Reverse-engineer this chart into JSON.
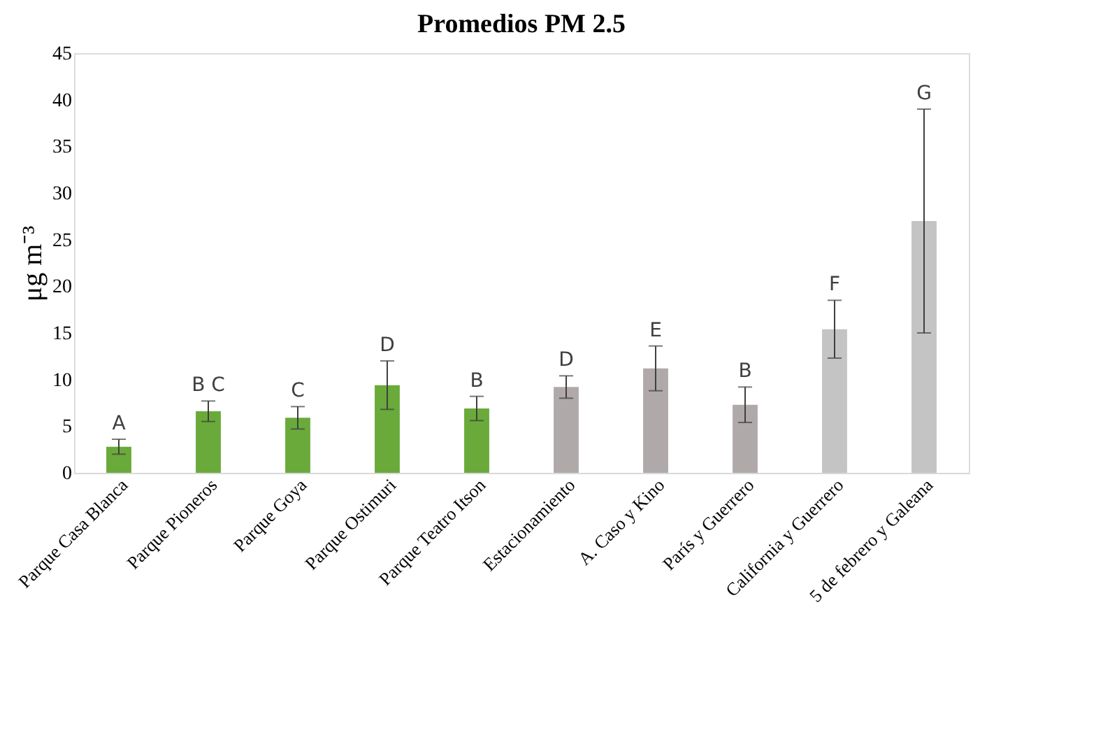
{
  "chart_data": {
    "type": "bar",
    "title": "Promedios PM 2.5",
    "ylabel": "μg m⁻³",
    "categories": [
      "Parque Casa Blanca",
      "Parque Pioneros",
      "Parque Goya",
      "Parque Ostimuri",
      "Parque Teatro Itson",
      "Estacionamiento",
      "A. Caso y Kino",
      "París y Guerrero",
      "California y Guerrero",
      "5 de febrero y Galeana"
    ],
    "values": [
      2.8,
      6.6,
      5.9,
      9.4,
      6.9,
      9.2,
      11.2,
      7.3,
      15.4,
      27.0
    ],
    "errors": [
      0.8,
      1.1,
      1.2,
      2.6,
      1.3,
      1.2,
      2.4,
      1.9,
      3.1,
      12.0
    ],
    "colors": [
      "#6aaa3a",
      "#6aaa3a",
      "#6aaa3a",
      "#6aaa3a",
      "#6aaa3a",
      "#b0a9aa",
      "#b0a9aa",
      "#b0a9aa",
      "#c4c4c4",
      "#c4c4c4"
    ],
    "ylim": [
      0,
      45
    ],
    "yticks": [
      0,
      5,
      10,
      15,
      20,
      25,
      30,
      35,
      40,
      45
    ],
    "grid": false,
    "annotations": [
      {
        "text": "A",
        "x": "Parque Casa Blanca",
        "y": 3.6
      },
      {
        "text": "B C",
        "x": "Parque Pioneros",
        "y": 7.7
      },
      {
        "text": "C",
        "x": "Parque Goya",
        "y": 7.1
      },
      {
        "text": "D",
        "x": "Parque Ostimuri",
        "y": 12.0
      },
      {
        "text": "B",
        "x": "Parque Teatro Itson",
        "y": 8.2
      },
      {
        "text": "D",
        "x": "Estacionamiento",
        "y": 10.4
      },
      {
        "text": "E",
        "x": "A. Caso y Kino",
        "y": 13.6
      },
      {
        "text": "B",
        "x": "París y Guerrero",
        "y": 9.2
      },
      {
        "text": "F",
        "x": "California y Guerrero",
        "y": 18.5
      },
      {
        "text": "G",
        "x": "5 de febrero y Galeana",
        "y": 39.0
      }
    ]
  }
}
